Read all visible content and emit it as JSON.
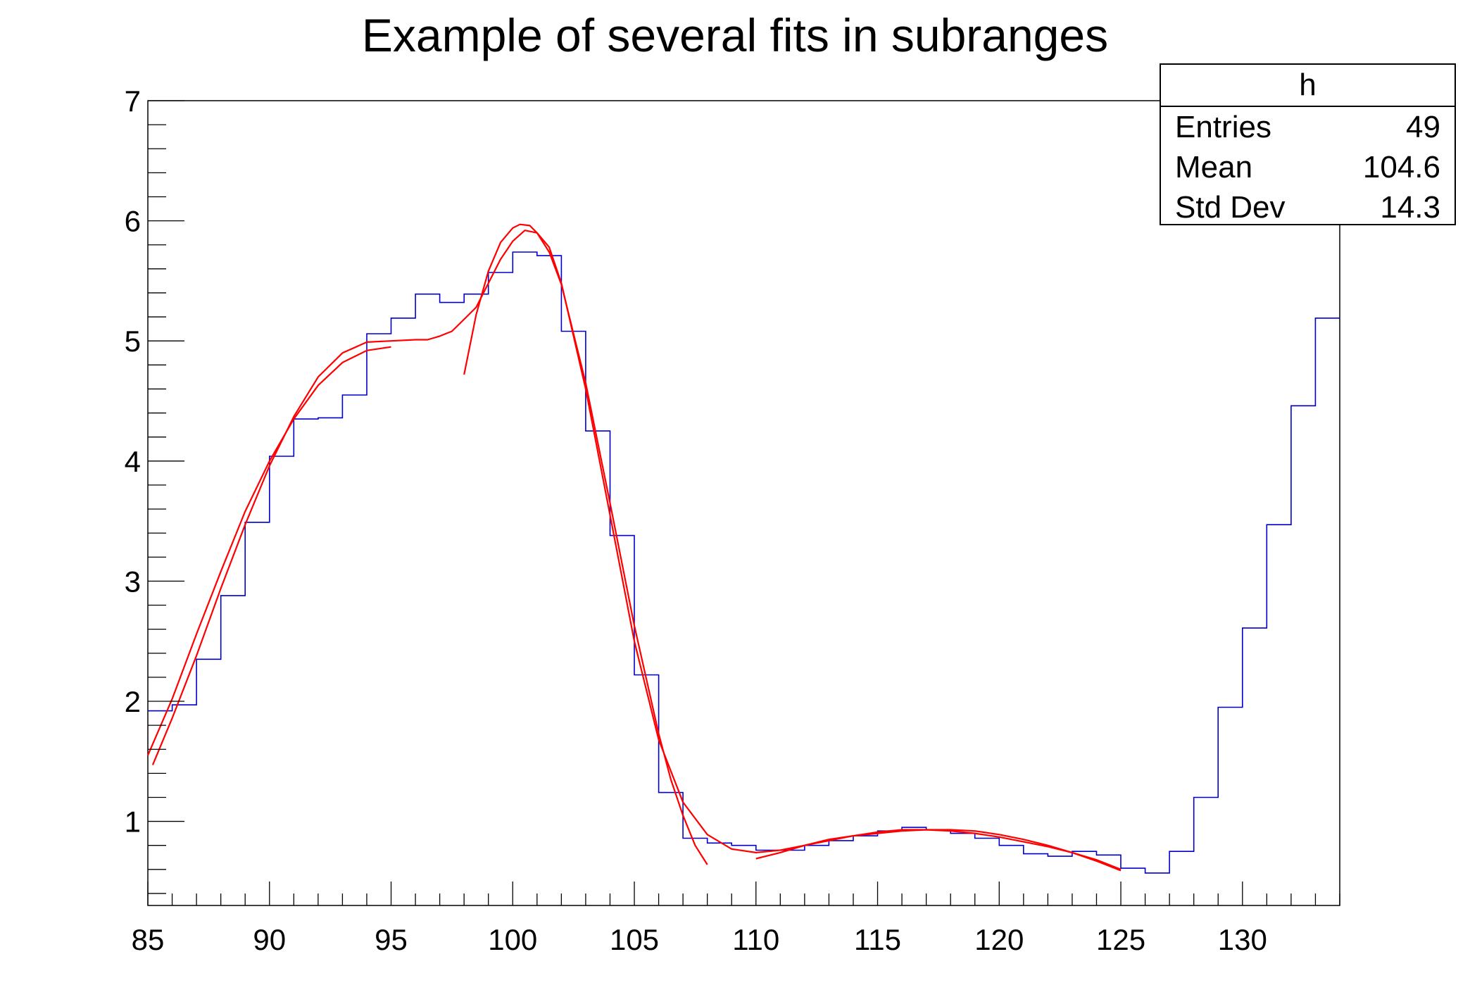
{
  "title": "Example of several fits in subranges",
  "stats": {
    "name": "h",
    "rows": [
      {
        "label": "Entries",
        "value": "49"
      },
      {
        "label": "Mean",
        "value": "104.6"
      },
      {
        "label": "Std Dev",
        "value": "14.3"
      }
    ]
  },
  "colors": {
    "histogram": "#0000cc",
    "fit": "#ff0000",
    "axis": "#000000"
  },
  "chart_data": {
    "type": "line",
    "title": "Example of several fits in subranges",
    "xlabel": "",
    "ylabel": "",
    "xlim": [
      85,
      134
    ],
    "ylim": [
      0.3,
      7
    ],
    "x_ticks": [
      85,
      90,
      95,
      100,
      105,
      110,
      115,
      120,
      125,
      130
    ],
    "y_ticks": [
      1,
      2,
      3,
      4,
      5,
      6,
      7
    ],
    "grid": false,
    "legend": "top-right stats box",
    "histogram": {
      "name": "h",
      "bin_edges": [
        85,
        86,
        87,
        88,
        89,
        90,
        91,
        92,
        93,
        94,
        95,
        96,
        97,
        98,
        99,
        100,
        101,
        102,
        103,
        104,
        105,
        106,
        107,
        108,
        109,
        110,
        111,
        112,
        113,
        114,
        115,
        116,
        117,
        118,
        119,
        120,
        121,
        122,
        123,
        124,
        125,
        126,
        127,
        128,
        129,
        130,
        131,
        132,
        133,
        134
      ],
      "values": [
        1.92,
        1.97,
        2.35,
        2.88,
        3.49,
        4.04,
        4.35,
        4.36,
        4.55,
        5.06,
        5.19,
        5.39,
        5.32,
        5.39,
        5.57,
        5.74,
        5.71,
        5.08,
        4.25,
        3.38,
        2.22,
        1.24,
        0.86,
        0.82,
        0.8,
        0.76,
        0.76,
        0.8,
        0.84,
        0.88,
        0.92,
        0.95,
        0.93,
        0.9,
        0.86,
        0.8,
        0.73,
        0.71,
        0.75,
        0.72,
        0.61,
        0.57,
        0.75,
        1.2,
        1.95,
        2.61,
        3.47,
        4.46,
        5.19
      ]
    },
    "series": [
      {
        "x": [
          85,
          86,
          87,
          88,
          89,
          90,
          91,
          92,
          93,
          94,
          95
        ],
        "y": [
          1.55,
          2.02,
          2.56,
          3.08,
          3.58,
          4.0,
          4.35,
          4.63,
          4.82,
          4.92,
          4.95
        ]
      },
      {
        "x": [
          85.2,
          86,
          87,
          88,
          89,
          90,
          91,
          92,
          93,
          94,
          95,
          96,
          96.5,
          97,
          97.5,
          98,
          98.5,
          99,
          99.5,
          100,
          100.5,
          101,
          101.5,
          102,
          103,
          104,
          105,
          106,
          107,
          108,
          109,
          110,
          111,
          112,
          113,
          114,
          115,
          116,
          117,
          118,
          119,
          120,
          121,
          122,
          123,
          124,
          125
        ],
        "y": [
          1.47,
          1.86,
          2.38,
          2.94,
          3.47,
          3.96,
          4.37,
          4.7,
          4.9,
          4.99,
          5.0,
          5.01,
          5.01,
          5.04,
          5.08,
          5.18,
          5.28,
          5.48,
          5.68,
          5.83,
          5.92,
          5.9,
          5.78,
          5.48,
          4.6,
          3.55,
          2.5,
          1.68,
          1.16,
          0.89,
          0.77,
          0.74,
          0.76,
          0.8,
          0.84,
          0.88,
          0.91,
          0.93,
          0.93,
          0.93,
          0.92,
          0.89,
          0.85,
          0.8,
          0.74,
          0.67,
          0.59
        ]
      },
      {
        "x": [
          98,
          98.5,
          99,
          99.5,
          100,
          100.3,
          100.7,
          101,
          101.5,
          102,
          103,
          104,
          105,
          106,
          106.5,
          107,
          107.5,
          108
        ],
        "y": [
          4.72,
          5.22,
          5.58,
          5.82,
          5.94,
          5.97,
          5.96,
          5.9,
          5.74,
          5.47,
          4.65,
          3.65,
          2.63,
          1.73,
          1.35,
          1.05,
          0.8,
          0.64
        ]
      },
      {
        "x": [
          110,
          111,
          112,
          113,
          114,
          115,
          116,
          117,
          118,
          119,
          120,
          121,
          122,
          123,
          124,
          125
        ],
        "y": [
          0.69,
          0.74,
          0.8,
          0.85,
          0.88,
          0.9,
          0.92,
          0.93,
          0.92,
          0.9,
          0.87,
          0.83,
          0.79,
          0.74,
          0.68,
          0.6
        ]
      }
    ]
  }
}
